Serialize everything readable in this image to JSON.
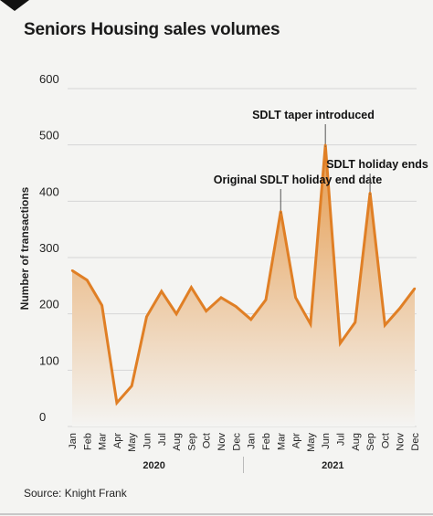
{
  "chart_data": {
    "type": "area",
    "title": "Seniors Housing sales volumes",
    "ylabel": "Number of transactions",
    "xlabel": "",
    "ylim": [
      0,
      600
    ],
    "yticks": [
      0,
      100,
      200,
      300,
      400,
      500,
      600
    ],
    "grid": true,
    "categories": [
      "Jan",
      "Feb",
      "Mar",
      "Apr",
      "May",
      "Jun",
      "Jul",
      "Aug",
      "Sep",
      "Oct",
      "Nov",
      "Dec",
      "Jan",
      "Feb",
      "Mar",
      "Apr",
      "May",
      "Jun",
      "Jul",
      "Aug",
      "Sep",
      "Oct",
      "Nov",
      "Dec"
    ],
    "year_groups": [
      {
        "label": "2020",
        "start": 0,
        "end": 11
      },
      {
        "label": "2021",
        "start": 12,
        "end": 23
      }
    ],
    "series": [
      {
        "values": [
          277,
          260,
          215,
          42,
          72,
          195,
          240,
          200,
          247,
          205,
          229,
          213,
          190,
          225,
          382,
          229,
          182,
          500,
          148,
          185,
          415,
          180,
          210,
          245
        ]
      }
    ],
    "annotations": [
      {
        "text": "Original SDLT holiday end date",
        "index": 14
      },
      {
        "text": "SDLT taper introduced",
        "index": 17
      },
      {
        "text": "SDLT holiday ends",
        "index": 20
      }
    ],
    "colors": {
      "line": "#e07f25",
      "fill_top": "#e59a4c",
      "fill_bottom": "#f4f4f2",
      "grid": "#d6d6d6"
    }
  },
  "source": "Source: Knight Frank"
}
